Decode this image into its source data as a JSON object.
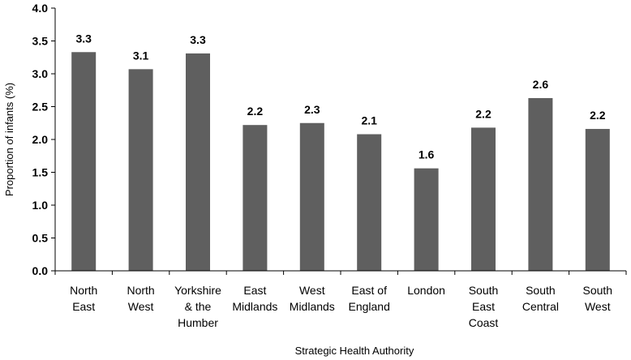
{
  "chart_data": {
    "type": "bar",
    "categories": [
      [
        "North",
        "East"
      ],
      [
        "North",
        "West"
      ],
      [
        "Yorkshire",
        "& the",
        "Humber"
      ],
      [
        "East",
        "Midlands"
      ],
      [
        "West",
        "Midlands"
      ],
      [
        "East of",
        "England"
      ],
      [
        "London"
      ],
      [
        "South",
        "East",
        "Coast"
      ],
      [
        "South",
        "Central"
      ],
      [
        "South",
        "West"
      ]
    ],
    "values": [
      3.33,
      3.07,
      3.31,
      2.22,
      2.25,
      2.08,
      1.56,
      2.18,
      2.63,
      2.16
    ],
    "data_labels": [
      "3.3",
      "3.1",
      "3.3",
      "2.2",
      "2.3",
      "2.1",
      "1.6",
      "2.2",
      "2.6",
      "2.2"
    ],
    "title": "",
    "xlabel": "Strategic Health Authority",
    "ylabel": "Proportion of infants (%)",
    "ylim": [
      0,
      4.0
    ],
    "yticks": [
      "0.0",
      "0.5",
      "1.0",
      "1.5",
      "2.0",
      "2.5",
      "3.0",
      "3.5",
      "4.0"
    ],
    "bar_color": "#5f5f5f",
    "grid": false,
    "legend": "none"
  }
}
